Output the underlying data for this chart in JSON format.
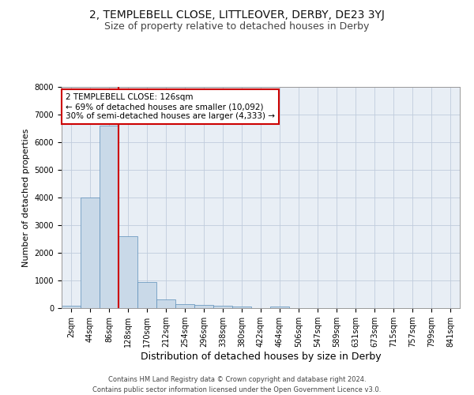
{
  "title_line1": "2, TEMPLEBELL CLOSE, LITTLEOVER, DERBY, DE23 3YJ",
  "title_line2": "Size of property relative to detached houses in Derby",
  "xlabel": "Distribution of detached houses by size in Derby",
  "ylabel": "Number of detached properties",
  "categories": [
    "2sqm",
    "44sqm",
    "86sqm",
    "128sqm",
    "170sqm",
    "212sqm",
    "254sqm",
    "296sqm",
    "338sqm",
    "380sqm",
    "422sqm",
    "464sqm",
    "506sqm",
    "547sqm",
    "589sqm",
    "631sqm",
    "673sqm",
    "715sqm",
    "757sqm",
    "799sqm",
    "841sqm"
  ],
  "bar_values": [
    80,
    4000,
    6600,
    2600,
    950,
    320,
    130,
    110,
    80,
    60,
    0,
    60,
    0,
    0,
    0,
    0,
    0,
    0,
    0,
    0,
    0
  ],
  "bar_color": "#c9d9e8",
  "bar_edge_color": "#5b8db8",
  "grid_color": "#c0ccdd",
  "background_color": "#e8eef5",
  "vline_x": 2.5,
  "annotation_text": "2 TEMPLEBELL CLOSE: 126sqm\n← 69% of detached houses are smaller (10,092)\n30% of semi-detached houses are larger (4,333) →",
  "annotation_box_color": "#ffffff",
  "annotation_box_edge": "#cc0000",
  "vline_color": "#cc0000",
  "ylim": [
    0,
    8000
  ],
  "yticks": [
    0,
    1000,
    2000,
    3000,
    4000,
    5000,
    6000,
    7000,
    8000
  ],
  "footer_line1": "Contains HM Land Registry data © Crown copyright and database right 2024.",
  "footer_line2": "Contains public sector information licensed under the Open Government Licence v3.0.",
  "title_fontsize": 10,
  "subtitle_fontsize": 9,
  "tick_fontsize": 7,
  "ylabel_fontsize": 8,
  "xlabel_fontsize": 9,
  "annotation_fontsize": 7.5,
  "footer_fontsize": 6
}
